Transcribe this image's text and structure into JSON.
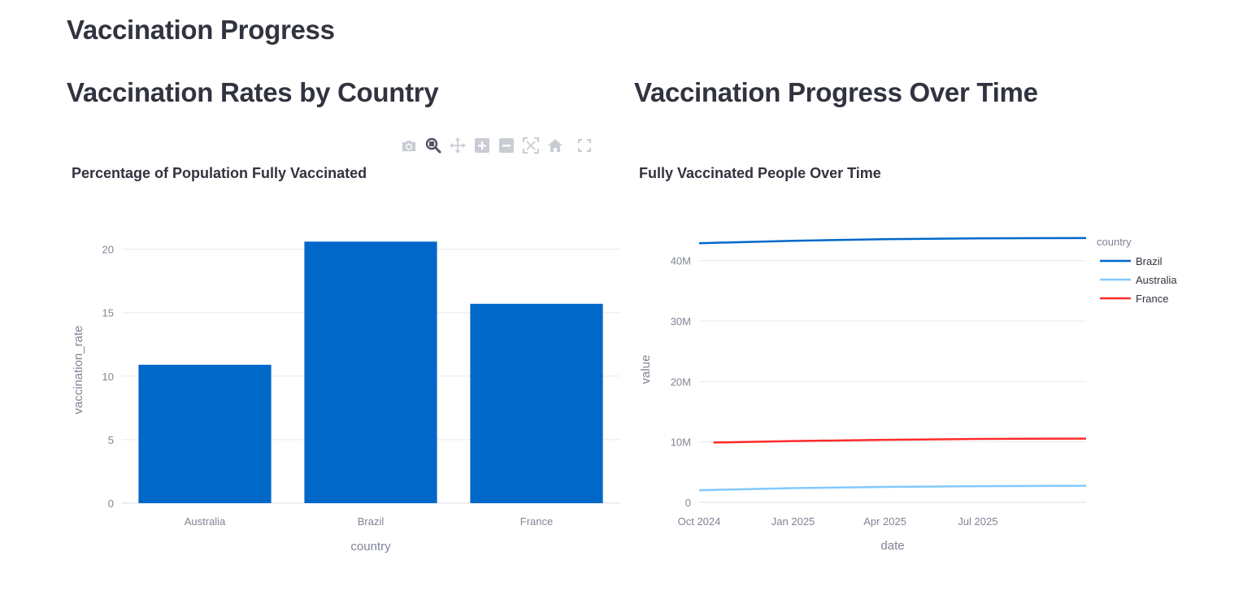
{
  "page": {
    "title": "Vaccination Progress"
  },
  "columns": {
    "left_title": "Vaccination Rates by Country",
    "right_title": "Vaccination Progress Over Time"
  },
  "modebar": {
    "buttons": [
      {
        "name": "camera-icon",
        "label": "Download plot as a png"
      },
      {
        "name": "zoom-icon",
        "label": "Zoom"
      },
      {
        "name": "pan-icon",
        "label": "Pan"
      },
      {
        "name": "zoom-in-icon",
        "label": "Zoom in"
      },
      {
        "name": "zoom-out-icon",
        "label": "Zoom out"
      },
      {
        "name": "autoscale-icon",
        "label": "Autoscale"
      },
      {
        "name": "home-icon",
        "label": "Reset axes"
      },
      {
        "name": "fullscreen-icon",
        "label": "Fullscreen"
      }
    ]
  },
  "chart_data": [
    {
      "type": "bar",
      "title": "Percentage of Population Fully Vaccinated",
      "categories": [
        "Australia",
        "Brazil",
        "France"
      ],
      "values": [
        10.9,
        20.6,
        15.7
      ],
      "xlabel": "country",
      "ylabel": "vaccination_rate",
      "ylim": [
        0,
        21
      ],
      "yticks": [
        0,
        5,
        10,
        15,
        20
      ],
      "color": "#0068c9",
      "grid": true
    },
    {
      "type": "line",
      "title": "Fully Vaccinated People Over Time",
      "xlabel": "date",
      "ylabel": "value",
      "xlim": [
        "2024-10-01",
        "2025-10-15"
      ],
      "ylim": [
        0,
        44000000
      ],
      "xticks": [
        {
          "date": "2024-10-01",
          "label": "Oct 2024"
        },
        {
          "date": "2025-01-01",
          "label": "Jan 2025"
        },
        {
          "date": "2025-04-01",
          "label": "Apr 2025"
        },
        {
          "date": "2025-07-01",
          "label": "Jul 2025"
        }
      ],
      "yticks": [
        {
          "value": 0,
          "label": "0"
        },
        {
          "value": 10000000,
          "label": "10M"
        },
        {
          "value": 20000000,
          "label": "20M"
        },
        {
          "value": 30000000,
          "label": "30M"
        },
        {
          "value": 40000000,
          "label": "40M"
        }
      ],
      "legend": {
        "title": "country",
        "position": "top-right"
      },
      "grid": true,
      "series": [
        {
          "name": "Brazil",
          "color": "#0068c9",
          "points": [
            {
              "x": "2024-10-01",
              "y": 42900000
            },
            {
              "x": "2025-01-01",
              "y": 43300000
            },
            {
              "x": "2025-04-01",
              "y": 43550000
            },
            {
              "x": "2025-07-01",
              "y": 43700000
            },
            {
              "x": "2025-10-15",
              "y": 43750000
            }
          ]
        },
        {
          "name": "Australia",
          "color": "#83c9ff",
          "points": [
            {
              "x": "2024-10-01",
              "y": 2000000
            },
            {
              "x": "2025-01-01",
              "y": 2350000
            },
            {
              "x": "2025-04-01",
              "y": 2550000
            },
            {
              "x": "2025-07-01",
              "y": 2680000
            },
            {
              "x": "2025-10-15",
              "y": 2750000
            }
          ]
        },
        {
          "name": "France",
          "color": "#ff2b2b",
          "points": [
            {
              "x": "2024-10-15",
              "y": 9900000
            },
            {
              "x": "2025-01-01",
              "y": 10150000
            },
            {
              "x": "2025-04-01",
              "y": 10350000
            },
            {
              "x": "2025-07-01",
              "y": 10500000
            },
            {
              "x": "2025-10-15",
              "y": 10550000
            }
          ]
        }
      ]
    }
  ]
}
